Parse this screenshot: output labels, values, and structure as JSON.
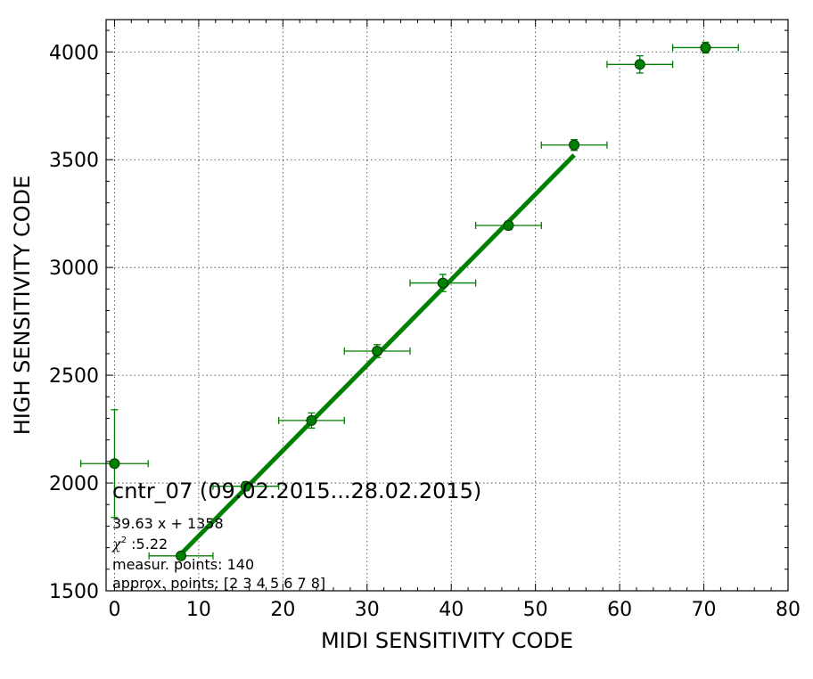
{
  "chart_data": {
    "type": "scatter",
    "xlabel": "MIDI SENSITIVITY CODE",
    "ylabel": "HIGH SENSITIVITY CODE",
    "xlim": [
      -1,
      80
    ],
    "ylim": [
      1500,
      4150
    ],
    "xticks": [
      0,
      10,
      20,
      30,
      40,
      50,
      60,
      70,
      80
    ],
    "yticks": [
      1500,
      2000,
      2500,
      3000,
      3500,
      4000
    ],
    "xtick_labels": [
      "0",
      "10",
      "20",
      "30",
      "40",
      "50",
      "60",
      "70",
      "80"
    ],
    "ytick_labels": [
      "1500",
      "2000",
      "2500",
      "3000",
      "3500",
      "4000"
    ],
    "grid": true,
    "color": "#008000",
    "points": [
      {
        "x": 0.0,
        "y": 2090,
        "xerr": 4.0,
        "yerr": 250
      },
      {
        "x": 7.9,
        "y": 1662,
        "xerr": 3.8,
        "yerr": 15
      },
      {
        "x": 15.6,
        "y": 1985,
        "xerr": 3.9,
        "yerr": 20
      },
      {
        "x": 23.4,
        "y": 2290,
        "xerr": 3.9,
        "yerr": 35
      },
      {
        "x": 31.2,
        "y": 2612,
        "xerr": 3.9,
        "yerr": 30
      },
      {
        "x": 39.0,
        "y": 2928,
        "xerr": 3.9,
        "yerr": 40
      },
      {
        "x": 46.8,
        "y": 3195,
        "xerr": 3.9,
        "yerr": 20
      },
      {
        "x": 54.6,
        "y": 3568,
        "xerr": 3.9,
        "yerr": 25
      },
      {
        "x": 62.4,
        "y": 3942,
        "xerr": 3.9,
        "yerr": 40
      },
      {
        "x": 70.2,
        "y": 4020,
        "xerr": 3.9,
        "yerr": 25
      }
    ],
    "fit": {
      "slope": 39.63,
      "intercept": 1358,
      "x_range": [
        7.9,
        54.6
      ]
    },
    "annotations": {
      "title": "cntr_07 (09.02.2015...28.02.2015)",
      "equation": "39.63 x + 1358",
      "chi_symbol": "χ",
      "chi_sup": "2",
      "chi_value": " :5.22",
      "measur_points": "measur. points: 140",
      "approx_points": "approx. points: [2 3 4 5 6 7 8]"
    }
  }
}
